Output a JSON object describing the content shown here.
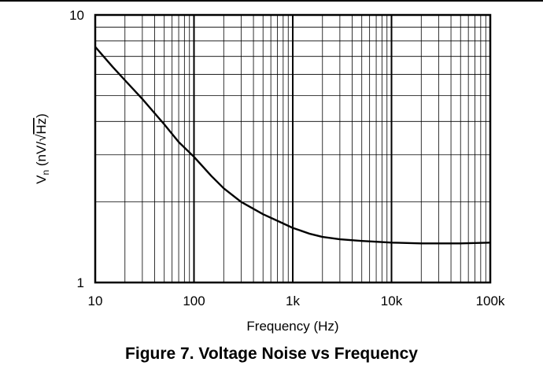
{
  "caption": "Figure 7. Voltage Noise vs Frequency",
  "chart_data": {
    "type": "line",
    "title": "Figure 7. Voltage Noise vs Frequency",
    "xlabel": "Frequency (Hz)",
    "ylabel_parts": {
      "symbol": "V",
      "subscript": "n",
      "unit_open": "(nV/√",
      "unit_radicand": "Hz",
      "unit_close": ")"
    },
    "x_scale": "log",
    "y_scale": "log",
    "xlim": [
      10,
      100000
    ],
    "ylim": [
      1,
      10
    ],
    "x_ticks": [
      {
        "value": 10,
        "label": "10"
      },
      {
        "value": 100,
        "label": "100"
      },
      {
        "value": 1000,
        "label": "1k"
      },
      {
        "value": 10000,
        "label": "10k"
      },
      {
        "value": 100000,
        "label": "100k"
      }
    ],
    "y_ticks": [
      {
        "value": 1,
        "label": "1"
      },
      {
        "value": 10,
        "label": "10"
      }
    ],
    "grid": true,
    "series": [
      {
        "color": "#000000",
        "x": [
          10,
          15,
          20,
          30,
          50,
          70,
          100,
          150,
          200,
          300,
          500,
          700,
          1000,
          1500,
          2000,
          3000,
          5000,
          7000,
          10000,
          20000,
          50000,
          100000
        ],
        "y": [
          7.6,
          6.4,
          5.7,
          4.85,
          3.9,
          3.35,
          2.95,
          2.5,
          2.25,
          2.0,
          1.8,
          1.7,
          1.6,
          1.52,
          1.48,
          1.45,
          1.43,
          1.42,
          1.41,
          1.4,
          1.4,
          1.41
        ]
      }
    ]
  }
}
